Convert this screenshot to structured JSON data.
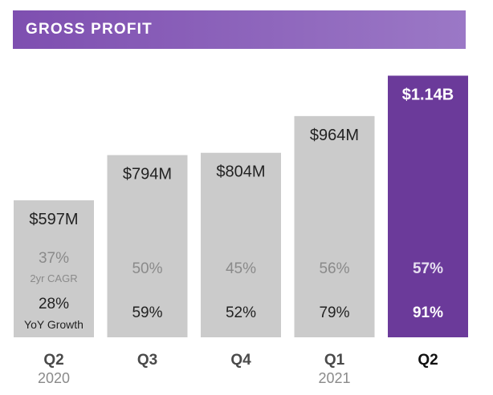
{
  "header": {
    "title": "GROSS PROFIT"
  },
  "colors": {
    "header_start": "#7e4fb0",
    "header_end": "#9b78c6",
    "bar_default": "#cbcbcb",
    "bar_highlight": "#6b3a9a",
    "text_dark": "#222222",
    "text_muted": "#8a8a8a",
    "text_highlight_value": "#ffffff",
    "text_highlight_pct": "#e6dff0",
    "period_label": "#4a4a4a",
    "year_label": "#8a8a8a"
  },
  "chart_data": {
    "type": "bar",
    "title": "GROSS PROFIT",
    "unit": "USD millions",
    "categories": [
      "Q2 2020",
      "Q3",
      "Q4",
      "Q1 2021",
      "Q2"
    ],
    "values": [
      597,
      794,
      804,
      964,
      1140
    ],
    "ylim": [
      0,
      1180
    ],
    "bars": [
      {
        "period": "Q2",
        "year": "2020",
        "value": 597,
        "value_label": "$597M",
        "cagr": "37%",
        "cagr_label": "2yr CAGR",
        "yoy": "28%",
        "yoy_label": "YoY Growth",
        "highlight": false
      },
      {
        "period": "Q3",
        "year": "",
        "value": 794,
        "value_label": "$794M",
        "cagr": "50%",
        "cagr_label": "",
        "yoy": "59%",
        "yoy_label": "",
        "highlight": false
      },
      {
        "period": "Q4",
        "year": "",
        "value": 804,
        "value_label": "$804M",
        "cagr": "45%",
        "cagr_label": "",
        "yoy": "52%",
        "yoy_label": "",
        "highlight": false
      },
      {
        "period": "Q1",
        "year": "2021",
        "value": 964,
        "value_label": "$964M",
        "cagr": "56%",
        "cagr_label": "",
        "yoy": "79%",
        "yoy_label": "",
        "highlight": false
      },
      {
        "period": "Q2",
        "year": "",
        "value": 1140,
        "value_label": "$1.14B",
        "cagr": "57%",
        "cagr_label": "",
        "yoy": "91%",
        "yoy_label": "",
        "highlight": true
      }
    ]
  }
}
